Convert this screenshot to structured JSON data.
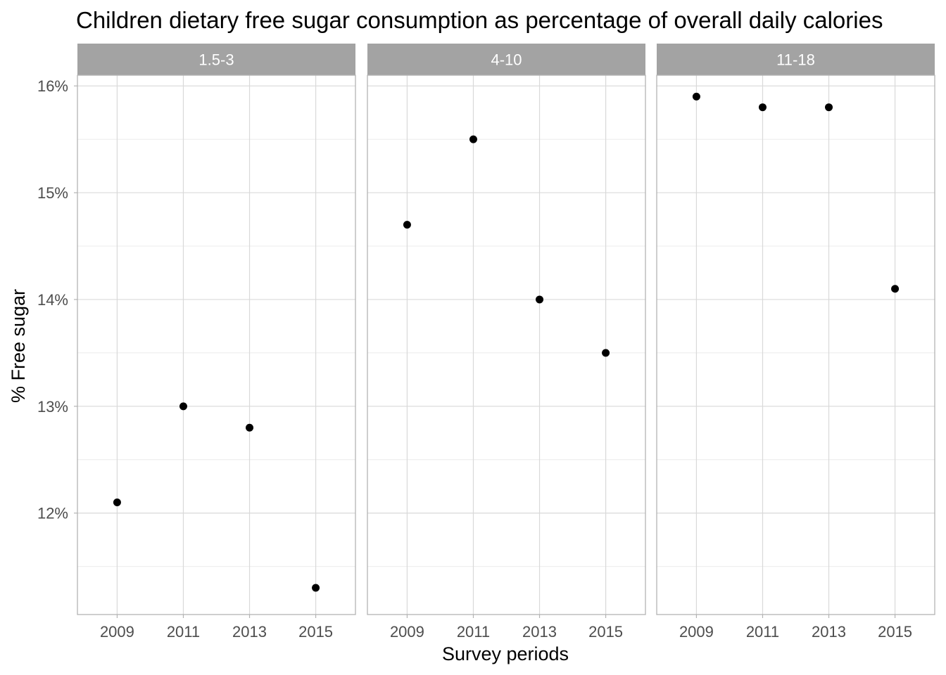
{
  "chart_data": {
    "type": "scatter",
    "title": "Children dietary free sugar consumption as percentage of overall daily calories",
    "xlabel": "Survey periods",
    "ylabel": "% Free sugar",
    "x_ticks": [
      "2009",
      "2011",
      "2013",
      "2015"
    ],
    "y_ticks": [
      "12%",
      "13%",
      "14%",
      "15%",
      "16%"
    ],
    "ylim": [
      11.05,
      16.1
    ],
    "y_unit": "%",
    "grid": true,
    "facets": [
      {
        "label": "1.5-3",
        "x": [
          2009,
          2011,
          2013,
          2015
        ],
        "y": [
          12.1,
          13.0,
          12.8,
          11.3
        ]
      },
      {
        "label": "4-10",
        "x": [
          2009,
          2011,
          2013,
          2015
        ],
        "y": [
          14.7,
          15.5,
          14.0,
          13.5
        ]
      },
      {
        "label": "11-18",
        "x": [
          2009,
          2011,
          2013,
          2015
        ],
        "y": [
          15.9,
          15.8,
          15.8,
          14.1
        ]
      }
    ],
    "colors": {
      "point": "#000000",
      "strip_bg": "#a3a3a3",
      "strip_text": "#ffffff",
      "grid_major": "#d9d9d9",
      "grid_minor": "#ebebeb",
      "panel_border": "#b3b3b3",
      "tick_text": "#4d4d4d"
    }
  }
}
